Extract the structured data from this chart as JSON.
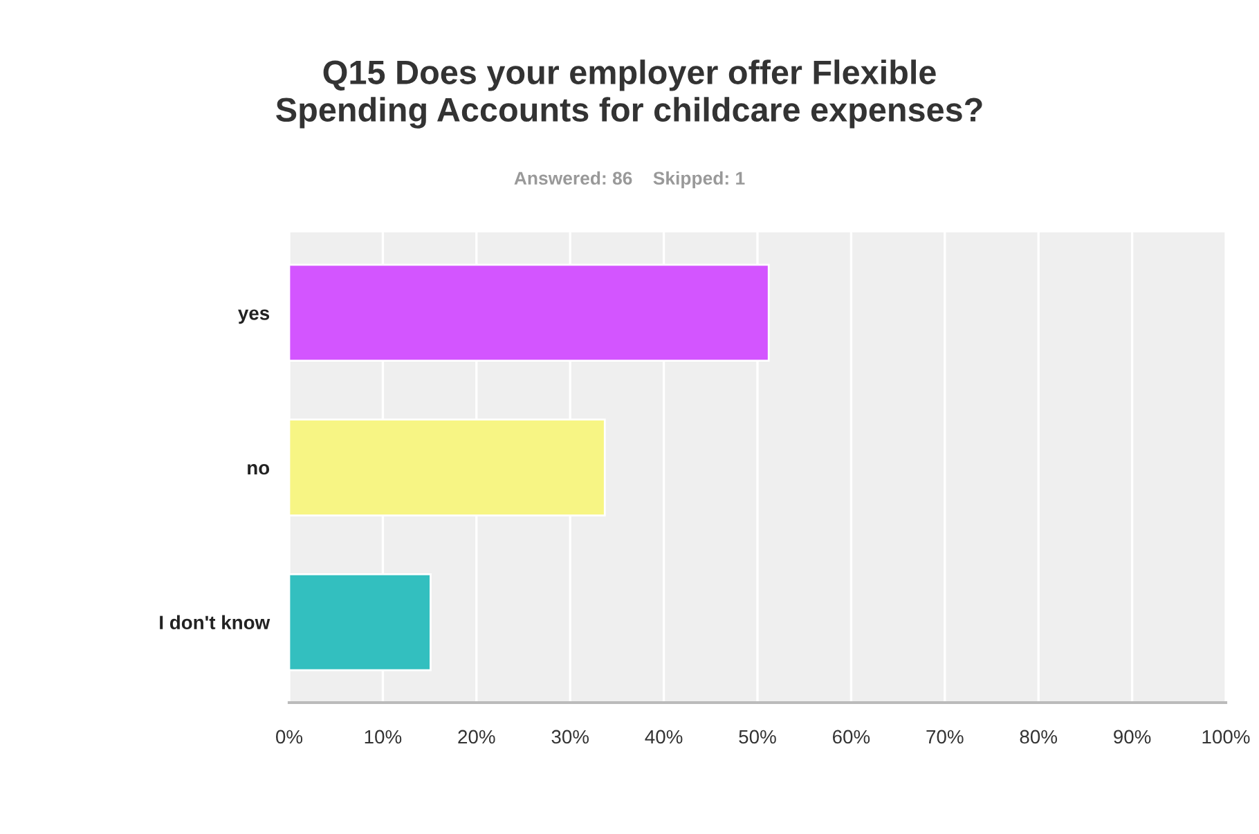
{
  "chart_data": {
    "type": "bar",
    "orientation": "horizontal",
    "title": "Q15 Does your employer offer Flexible\nSpending Accounts for childcare expenses?",
    "subtitle": "Answered: 86    Skipped: 1",
    "categories": [
      "yes",
      "no",
      "I don't know"
    ],
    "values": [
      51.2,
      33.7,
      15.1
    ],
    "colors": [
      "#d355ff",
      "#f7f584",
      "#33bfbf"
    ],
    "xlim": [
      0,
      100
    ],
    "xticks": [
      {
        "value": 0,
        "label": "0%"
      },
      {
        "value": 10,
        "label": "10%"
      },
      {
        "value": 20,
        "label": "20%"
      },
      {
        "value": 30,
        "label": "30%"
      },
      {
        "value": 40,
        "label": "40%"
      },
      {
        "value": 50,
        "label": "50%"
      },
      {
        "value": 60,
        "label": "60%"
      },
      {
        "value": 70,
        "label": "70%"
      },
      {
        "value": 80,
        "label": "80%"
      },
      {
        "value": 90,
        "label": "90%"
      },
      {
        "value": 100,
        "label": "100%"
      }
    ],
    "grid": "x",
    "legend": false
  }
}
